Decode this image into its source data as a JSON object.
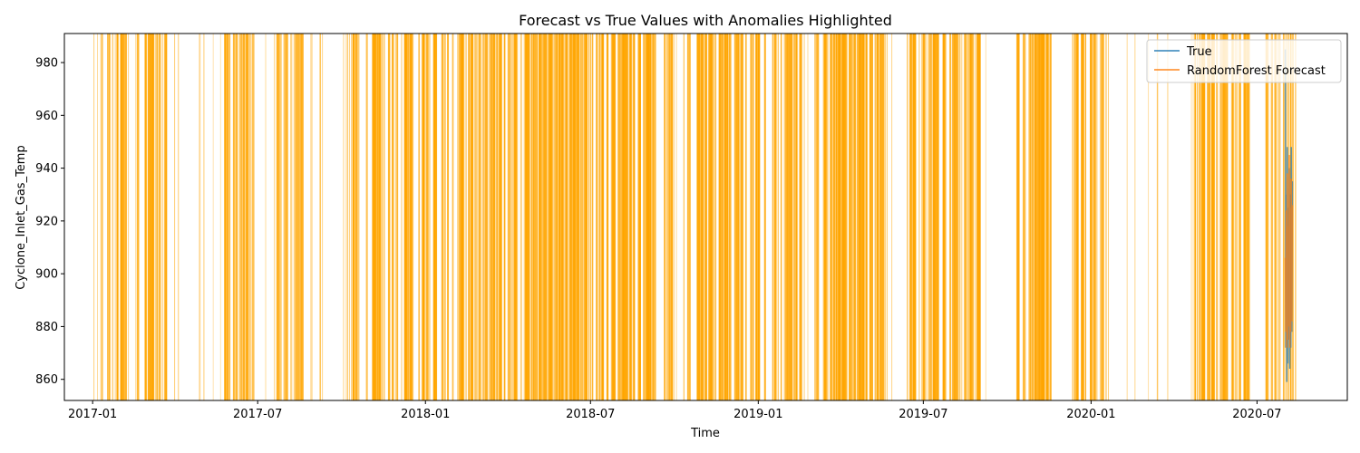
{
  "chart_data": {
    "type": "line",
    "title": "Forecast vs True Values with Anomalies Highlighted",
    "xlabel": "Time",
    "ylabel": "Cyclone_Inlet_Gas_Temp",
    "xlim": [
      "2016-12-01",
      "2020-10-08"
    ],
    "ylim": [
      852,
      991
    ],
    "x_ticks": [
      "2017-01",
      "2017-07",
      "2018-01",
      "2018-07",
      "2019-01",
      "2019-07",
      "2020-01",
      "2020-07"
    ],
    "y_ticks": [
      860,
      880,
      900,
      920,
      940,
      960,
      980
    ],
    "grid": false,
    "legend_position": "top-right",
    "colors": {
      "true": "#1f77b4",
      "forecast": "#ff7f0e",
      "anomaly": "#ffa500"
    },
    "series": [
      {
        "name": "True",
        "x": [
          "2020-08-01",
          "2020-08-01",
          "2020-08-02",
          "2020-08-02",
          "2020-08-02",
          "2020-08-03",
          "2020-08-03",
          "2020-08-04",
          "2020-08-04",
          "2020-08-05",
          "2020-08-05",
          "2020-08-05",
          "2020-08-06",
          "2020-08-06",
          "2020-08-07"
        ],
        "values": [
          985,
          872,
          930,
          859,
          948,
          866,
          925,
          875,
          940,
          864,
          930,
          872,
          948,
          878,
          935
        ]
      },
      {
        "name": "RandomForest Forecast",
        "x": [
          "2020-08-01",
          "2020-08-01",
          "2020-08-02",
          "2020-08-02",
          "2020-08-02",
          "2020-08-03",
          "2020-08-03",
          "2020-08-04",
          "2020-08-04",
          "2020-08-05",
          "2020-08-05",
          "2020-08-05",
          "2020-08-06",
          "2020-08-06",
          "2020-08-07"
        ],
        "values": [
          906,
          878,
          924,
          872,
          938,
          875,
          918,
          880,
          945,
          872,
          925,
          878,
          936,
          882,
          926
        ]
      }
    ],
    "anomaly_dates_dense": [
      "2017-01-20",
      "2017-03-05",
      "2017-06-10",
      "2017-08-05",
      "2017-10-28",
      "2017-11-20",
      "2017-12-25",
      "2018-01-25",
      "2018-02-20",
      "2018-03-28",
      "2018-05-01",
      "2018-06-01",
      "2018-06-28",
      "2018-07-28",
      "2018-08-20",
      "2018-09-15",
      "2018-10-25",
      "2018-11-20",
      "2018-12-22",
      "2019-02-01",
      "2019-03-20",
      "2019-04-10",
      "2019-05-05",
      "2019-06-28",
      "2019-07-28",
      "2019-08-15",
      "2019-10-25",
      "2019-11-10",
      "2019-12-28",
      "2020-05-10",
      "2020-06-05",
      "2020-07-26"
    ],
    "anomaly_dates_sparse": [
      "2017-01-10",
      "2017-02-10",
      "2017-04-02",
      "2017-04-25",
      "2017-05-22",
      "2017-07-15",
      "2017-09-01",
      "2017-10-05",
      "2018-01-05",
      "2018-04-15",
      "2018-09-30",
      "2018-10-05",
      "2019-01-10",
      "2019-02-20",
      "2019-05-25",
      "2019-09-10",
      "2020-01-15",
      "2020-02-20",
      "2020-03-15",
      "2020-04-28"
    ]
  }
}
